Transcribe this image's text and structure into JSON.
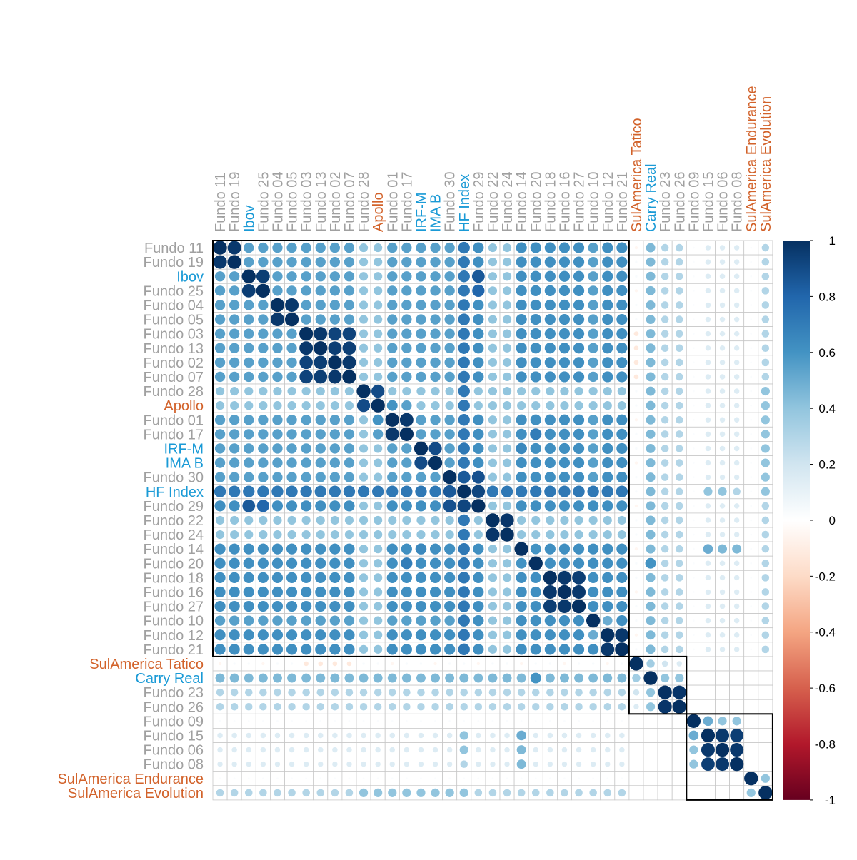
{
  "chart_data": {
    "type": "heatmap",
    "subtype": "correlation-circle-matrix",
    "title": "",
    "xlabel": "",
    "ylabel": "",
    "grid": true,
    "legend_position": "right",
    "labels": [
      "Fundo 11",
      "Fundo 19",
      "Ibov",
      "Fundo 25",
      "Fundo 04",
      "Fundo 05",
      "Fundo 03",
      "Fundo 13",
      "Fundo 02",
      "Fundo 07",
      "Fundo 28",
      "Apollo",
      "Fundo 01",
      "Fundo 17",
      "IRF-M",
      "IMA B",
      "Fundo 30",
      "HF Index",
      "Fundo 29",
      "Fundo 22",
      "Fundo 24",
      "Fundo 14",
      "Fundo 20",
      "Fundo 18",
      "Fundo 16",
      "Fundo 27",
      "Fundo 10",
      "Fundo 12",
      "Fundo 21",
      "SulAmerica Tatico",
      "Carry Real",
      "Fundo 23",
      "Fundo 26",
      "Fundo 09",
      "Fundo 15",
      "Fundo 06",
      "Fundo 08",
      "SulAmerica Endurance",
      "SulAmerica Evolution"
    ],
    "label_groups": [
      "fund",
      "fund",
      "index",
      "fund",
      "fund",
      "fund",
      "fund",
      "fund",
      "fund",
      "fund",
      "fund",
      "selected",
      "fund",
      "fund",
      "index",
      "index",
      "fund",
      "index",
      "fund",
      "fund",
      "fund",
      "fund",
      "fund",
      "fund",
      "fund",
      "fund",
      "fund",
      "fund",
      "fund",
      "selected",
      "index",
      "fund",
      "fund",
      "fund",
      "fund",
      "fund",
      "fund",
      "selected",
      "selected"
    ],
    "group_colors": {
      "fund": "#a0a0a0",
      "index": "#1a9ad6",
      "selected": "#d2622a"
    },
    "clusters": [
      {
        "start_label": "Fundo 11",
        "end_label": "Fundo 21"
      },
      {
        "start_label": "SulAmerica Tatico",
        "end_label": "Fundo 26"
      },
      {
        "start_label": "Fundo 09",
        "end_label": "SulAmerica Evolution"
      }
    ],
    "color_scale": {
      "stops": [
        {
          "value": -1,
          "color": "#67001f"
        },
        {
          "value": -0.8,
          "color": "#b2182b"
        },
        {
          "value": -0.6,
          "color": "#d6604d"
        },
        {
          "value": -0.4,
          "color": "#f4a582"
        },
        {
          "value": -0.2,
          "color": "#fddbc7"
        },
        {
          "value": 0,
          "color": "#ffffff"
        },
        {
          "value": 0.2,
          "color": "#d1e5f0"
        },
        {
          "value": 0.4,
          "color": "#92c5de"
        },
        {
          "value": 0.6,
          "color": "#4393c3"
        },
        {
          "value": 0.8,
          "color": "#2166ac"
        },
        {
          "value": 1,
          "color": "#053061"
        }
      ],
      "ticks": [
        "1",
        "0.8",
        "0.6",
        "0.4",
        "0.2",
        "0",
        "-0.2",
        "-0.4",
        "-0.6",
        "-0.8",
        "-1"
      ]
    },
    "pairwise_correlations_note_free_estimates": {
      "bright_pairs": [
        [
          "Fundo 11",
          "Fundo 19",
          0.97
        ],
        [
          "Ibov",
          "Fundo 25",
          0.95
        ],
        [
          "Fundo 04",
          "Fundo 05",
          0.97
        ],
        [
          "Fundo 03",
          "Fundo 13",
          0.97
        ],
        [
          "Fundo 03",
          "Fundo 02",
          0.93
        ],
        [
          "Fundo 03",
          "Fundo 07",
          0.93
        ],
        [
          "Fundo 13",
          "Fundo 02",
          0.95
        ],
        [
          "Fundo 13",
          "Fundo 07",
          0.95
        ],
        [
          "Fundo 02",
          "Fundo 07",
          0.97
        ],
        [
          "Fundo 01",
          "Fundo 17",
          0.97
        ],
        [
          "IRF-M",
          "IMA B",
          0.9
        ],
        [
          "Fundo 30",
          "HF Index",
          0.85
        ],
        [
          "Fundo 30",
          "Fundo 29",
          0.88
        ],
        [
          "HF Index",
          "Fundo 29",
          0.92
        ],
        [
          "Fundo 22",
          "Fundo 24",
          0.98
        ],
        [
          "Fundo 18",
          "Fundo 16",
          0.97
        ],
        [
          "Fundo 18",
          "Fundo 27",
          0.95
        ],
        [
          "Fundo 16",
          "Fundo 27",
          0.97
        ],
        [
          "Fundo 12",
          "Fundo 21",
          0.97
        ],
        [
          "Fundo 23",
          "Fundo 26",
          0.98
        ],
        [
          "Fundo 15",
          "Fundo 06",
          0.97
        ],
        [
          "Fundo 15",
          "Fundo 08",
          0.95
        ],
        [
          "Fundo 06",
          "Fundo 08",
          0.97
        ],
        [
          "Fundo 09",
          "Fundo 15",
          0.5
        ],
        [
          "SulAmerica Tatico",
          "Carry Real",
          0.35
        ],
        [
          "Carry Real",
          "Fundo 23",
          0.4
        ]
      ]
    }
  }
}
